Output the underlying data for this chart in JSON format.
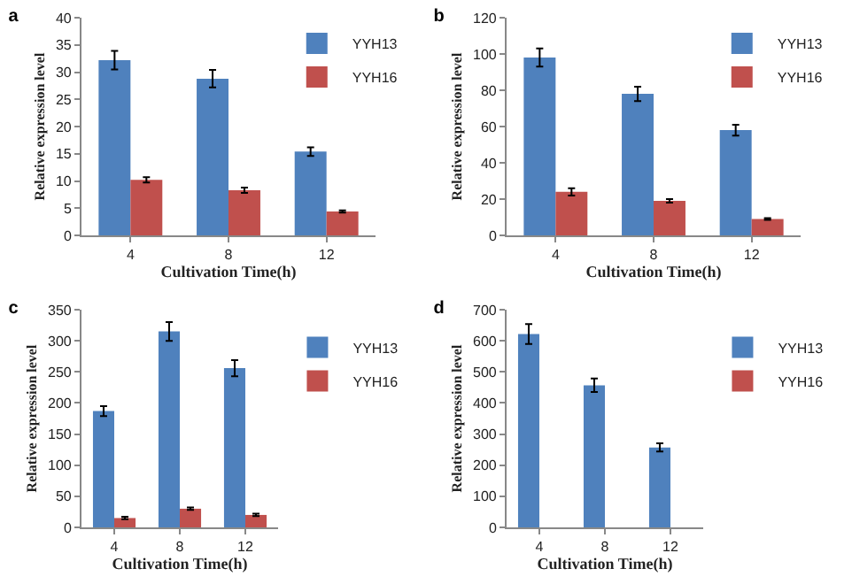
{
  "chart_data": [
    {
      "type": "bar",
      "title": "a",
      "xlabel": "Cultivation Time(h)",
      "ylabel": "Relative expression level",
      "categories": [
        "4",
        "8",
        "12"
      ],
      "ylim": [
        0,
        40
      ],
      "yticks": [
        0,
        5,
        10,
        15,
        20,
        25,
        30,
        35,
        40
      ],
      "grid": false,
      "legend": "top right",
      "series": [
        {
          "name": "YYH13",
          "color": "#4f81bd",
          "values": [
            32.2,
            28.8,
            15.4
          ],
          "errors": [
            1.7,
            1.6,
            0.8
          ]
        },
        {
          "name": "YYH16",
          "color": "#c0504d",
          "values": [
            10.2,
            8.3,
            4.4
          ],
          "errors": [
            0.5,
            0.5,
            0.2
          ]
        }
      ]
    },
    {
      "type": "bar",
      "title": "b",
      "xlabel": "Cultivation Time(h)",
      "ylabel": "Relative expression level",
      "categories": [
        "4",
        "8",
        "12"
      ],
      "ylim": [
        0,
        120
      ],
      "yticks": [
        0,
        20,
        40,
        60,
        80,
        100,
        120
      ],
      "grid": false,
      "legend": "top right",
      "series": [
        {
          "name": "YYH13",
          "color": "#4f81bd",
          "values": [
            98,
            78,
            58
          ],
          "errors": [
            5,
            4,
            3
          ]
        },
        {
          "name": "YYH16",
          "color": "#c0504d",
          "values": [
            24,
            19,
            9
          ],
          "errors": [
            2,
            1,
            0.5
          ]
        }
      ]
    },
    {
      "type": "bar",
      "title": "c",
      "xlabel": "Cultivation Time(h)",
      "ylabel": "Relative expression level",
      "categories": [
        "4",
        "8",
        "12"
      ],
      "ylim": [
        0,
        350
      ],
      "yticks": [
        0,
        50,
        100,
        150,
        200,
        250,
        300,
        350
      ],
      "grid": false,
      "legend": "right",
      "series": [
        {
          "name": "YYH13",
          "color": "#4f81bd",
          "values": [
            187,
            315,
            256
          ],
          "errors": [
            8,
            15,
            13
          ]
        },
        {
          "name": "YYH16",
          "color": "#c0504d",
          "values": [
            15,
            30,
            20
          ],
          "errors": [
            2,
            2,
            2
          ]
        }
      ]
    },
    {
      "type": "bar",
      "title": "d",
      "xlabel": "Cultivation Time(h)",
      "ylabel": "Relative expression level",
      "categories": [
        "4",
        "8",
        "12"
      ],
      "ylim": [
        0,
        700
      ],
      "yticks": [
        0,
        100,
        200,
        300,
        400,
        500,
        600,
        700
      ],
      "grid": false,
      "legend": "right",
      "series": [
        {
          "name": "YYH13",
          "color": "#4f81bd",
          "values": [
            622,
            457,
            257
          ],
          "errors": [
            32,
            22,
            13
          ]
        },
        {
          "name": "YYH16",
          "color": "#c0504d",
          "values": [
            null,
            null,
            null
          ]
        }
      ]
    }
  ]
}
